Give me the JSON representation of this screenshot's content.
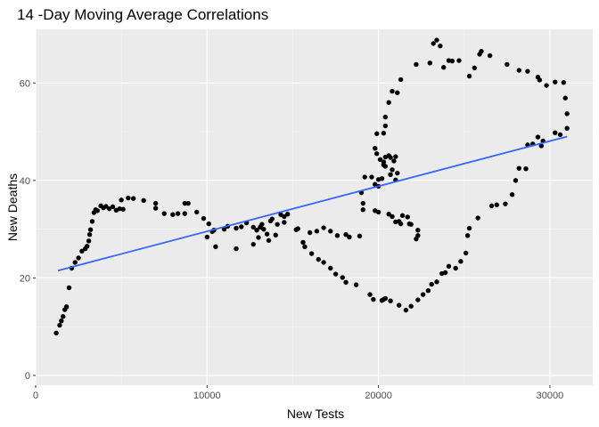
{
  "chart_data": {
    "type": "scatter",
    "title": "14 -Day Moving Average Correlations",
    "xlabel": "New Tests",
    "ylabel": "New Deaths",
    "xlim": [
      0,
      32500
    ],
    "ylim": [
      -2,
      71
    ],
    "x_ticks": [
      0,
      10000,
      20000,
      30000
    ],
    "x_tick_labels": [
      "0",
      "10000",
      "20000",
      "30000"
    ],
    "y_ticks": [
      0,
      20,
      40,
      60
    ],
    "y_tick_labels": [
      "0",
      "20",
      "40",
      "60"
    ],
    "grid": true,
    "legend": "none",
    "colors": {
      "panel": "#ebebeb",
      "grid_major": "#ffffff",
      "grid_minor": "#f5f5f5",
      "points": "#000000",
      "trend": "#3366ff"
    },
    "trend_line": {
      "method": "linear",
      "x": [
        1300,
        31000
      ],
      "y": [
        21.5,
        49.0
      ]
    },
    "points": [
      [
        1200,
        8.7
      ],
      [
        1400,
        10.3
      ],
      [
        1500,
        11.2
      ],
      [
        1600,
        12.1
      ],
      [
        1700,
        13.5
      ],
      [
        1800,
        14.1
      ],
      [
        1950,
        18.0
      ],
      [
        2100,
        22.0
      ],
      [
        2300,
        23.2
      ],
      [
        2500,
        24.1
      ],
      [
        2700,
        25.5
      ],
      [
        2900,
        26.0
      ],
      [
        3000,
        26.5
      ],
      [
        3100,
        27.6
      ],
      [
        3150,
        28.9
      ],
      [
        3200,
        29.9
      ],
      [
        3300,
        31.6
      ],
      [
        3400,
        33.4
      ],
      [
        3500,
        34.0
      ],
      [
        3600,
        33.8
      ],
      [
        3800,
        34.8
      ],
      [
        3950,
        34.4
      ],
      [
        4100,
        34.7
      ],
      [
        4300,
        34.2
      ],
      [
        4500,
        34.6
      ],
      [
        4700,
        33.9
      ],
      [
        4900,
        34.2
      ],
      [
        5000,
        36.0
      ],
      [
        5100,
        34.1
      ],
      [
        5400,
        36.4
      ],
      [
        5700,
        36.3
      ],
      [
        6300,
        35.9
      ],
      [
        7000,
        35.3
      ],
      [
        7000,
        34.3
      ],
      [
        7500,
        33.2
      ],
      [
        8000,
        33.0
      ],
      [
        8300,
        33.2
      ],
      [
        8700,
        35.3
      ],
      [
        8700,
        33.2
      ],
      [
        8900,
        35.3
      ],
      [
        9400,
        33.5
      ],
      [
        9800,
        32.2
      ],
      [
        10100,
        31.1
      ],
      [
        10000,
        28.4
      ],
      [
        10300,
        29.5
      ],
      [
        10400,
        29.8
      ],
      [
        10500,
        26.4
      ],
      [
        11000,
        30.0
      ],
      [
        11200,
        30.6
      ],
      [
        11700,
        30.2
      ],
      [
        11700,
        26.0
      ],
      [
        12000,
        30.5
      ],
      [
        12300,
        31.3
      ],
      [
        12700,
        30.4
      ],
      [
        12700,
        26.9
      ],
      [
        12900,
        29.8
      ],
      [
        13000,
        28.3
      ],
      [
        13100,
        30.4
      ],
      [
        13200,
        31.0
      ],
      [
        13300,
        30.0
      ],
      [
        13500,
        29.0
      ],
      [
        13600,
        27.7
      ],
      [
        13700,
        31.7
      ],
      [
        13800,
        32.1
      ],
      [
        14000,
        28.8
      ],
      [
        14100,
        31.0
      ],
      [
        14300,
        33.0
      ],
      [
        14500,
        31.4
      ],
      [
        14500,
        32.6
      ],
      [
        14700,
        33.1
      ],
      [
        15200,
        29.9
      ],
      [
        15300,
        30.1
      ],
      [
        15600,
        27.3
      ],
      [
        15700,
        26.4
      ],
      [
        16000,
        29.3
      ],
      [
        16100,
        25.0
      ],
      [
        16400,
        29.6
      ],
      [
        16500,
        23.8
      ],
      [
        16800,
        30.3
      ],
      [
        16800,
        23.2
      ],
      [
        17200,
        29.6
      ],
      [
        17200,
        22.0
      ],
      [
        17500,
        20.8
      ],
      [
        17600,
        28.7
      ],
      [
        17900,
        20.1
      ],
      [
        18100,
        28.9
      ],
      [
        18100,
        19.1
      ],
      [
        18300,
        28.4
      ],
      [
        18700,
        18.6
      ],
      [
        18900,
        28.6
      ],
      [
        19100,
        34.0
      ],
      [
        19500,
        16.6
      ],
      [
        19700,
        15.6
      ],
      [
        19800,
        33.8
      ],
      [
        20000,
        33.5
      ],
      [
        20200,
        15.4
      ],
      [
        20300,
        15.6
      ],
      [
        20400,
        15.8
      ],
      [
        20600,
        33.1
      ],
      [
        20700,
        15.3
      ],
      [
        20800,
        32.6
      ],
      [
        21000,
        31.5
      ],
      [
        21200,
        31.6
      ],
      [
        21300,
        31.1
      ],
      [
        21400,
        32.8
      ],
      [
        21200,
        14.4
      ],
      [
        21600,
        13.4
      ],
      [
        21700,
        32.5
      ],
      [
        21800,
        31.1
      ],
      [
        21900,
        31.0
      ],
      [
        21900,
        14.2
      ],
      [
        22200,
        28.0
      ],
      [
        22300,
        28.7
      ],
      [
        22300,
        29.8
      ],
      [
        22300,
        15.5
      ],
      [
        22600,
        16.6
      ],
      [
        22900,
        17.4
      ],
      [
        23100,
        18.7
      ],
      [
        23400,
        19.2
      ],
      [
        23700,
        20.9
      ],
      [
        23900,
        21.1
      ],
      [
        24100,
        22.4
      ],
      [
        24500,
        22.0
      ],
      [
        24800,
        23.4
      ],
      [
        25100,
        25.1
      ],
      [
        25200,
        28.7
      ],
      [
        25300,
        30.2
      ],
      [
        25800,
        32.3
      ],
      [
        26600,
        34.8
      ],
      [
        26900,
        35.0
      ],
      [
        27400,
        35.2
      ],
      [
        27800,
        37.1
      ],
      [
        28000,
        40.0
      ],
      [
        28200,
        42.5
      ],
      [
        28600,
        42.4
      ],
      [
        28700,
        47.3
      ],
      [
        29000,
        47.5
      ],
      [
        29300,
        48.9
      ],
      [
        29500,
        47.1
      ],
      [
        29600,
        48.1
      ],
      [
        30300,
        49.8
      ],
      [
        30600,
        49.4
      ],
      [
        31000,
        50.7
      ],
      [
        31000,
        53.7
      ],
      [
        30900,
        56.9
      ],
      [
        30800,
        60.1
      ],
      [
        30300,
        60.2
      ],
      [
        29800,
        59.5
      ],
      [
        29400,
        60.6
      ],
      [
        29300,
        61.2
      ],
      [
        28700,
        62.4
      ],
      [
        28200,
        62.6
      ],
      [
        27500,
        63.8
      ],
      [
        26500,
        65.6
      ],
      [
        26000,
        66.5
      ],
      [
        25900,
        65.9
      ],
      [
        25600,
        63.1
      ],
      [
        25300,
        61.4
      ],
      [
        24700,
        64.6
      ],
      [
        24300,
        64.5
      ],
      [
        24100,
        64.6
      ],
      [
        23800,
        63.2
      ],
      [
        23600,
        67.6
      ],
      [
        23400,
        68.8
      ],
      [
        23200,
        68.1
      ],
      [
        23000,
        64.1
      ],
      [
        22200,
        63.8
      ],
      [
        21300,
        60.7
      ],
      [
        21100,
        58.0
      ],
      [
        20800,
        58.3
      ],
      [
        20600,
        56.0
      ],
      [
        20400,
        53.0
      ],
      [
        20400,
        51.2
      ],
      [
        20300,
        49.7
      ],
      [
        19900,
        49.6
      ],
      [
        19800,
        46.6
      ],
      [
        19900,
        45.5
      ],
      [
        20100,
        44.3
      ],
      [
        20400,
        44.8
      ],
      [
        20300,
        43.8
      ],
      [
        20600,
        45.1
      ],
      [
        20300,
        43.2
      ],
      [
        20700,
        44.7
      ],
      [
        21000,
        44.9
      ],
      [
        20900,
        44.0
      ],
      [
        20400,
        42.9
      ],
      [
        20800,
        42.2
      ],
      [
        21100,
        41.5
      ],
      [
        20700,
        41.2
      ],
      [
        21000,
        40.1
      ],
      [
        20200,
        40.4
      ],
      [
        20000,
        40.2
      ],
      [
        19800,
        39.2
      ],
      [
        20000,
        38.8
      ],
      [
        19600,
        40.7
      ],
      [
        19200,
        40.7
      ],
      [
        19000,
        37.5
      ],
      [
        19100,
        35.3
      ]
    ]
  }
}
